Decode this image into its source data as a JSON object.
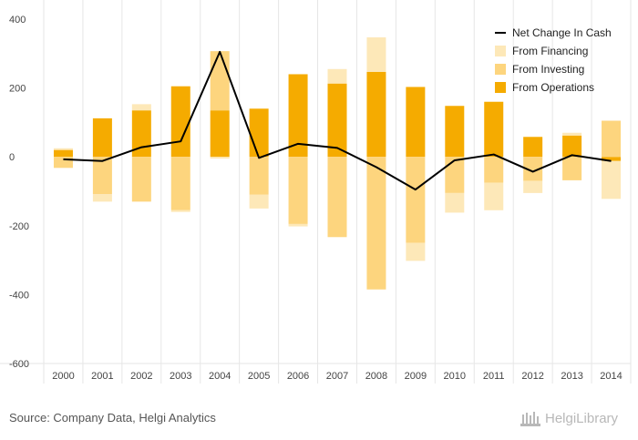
{
  "source_note": "Source: Company Data, Helgi Analytics",
  "brand": {
    "name": "HelgiLibrary"
  },
  "colors": {
    "operations": "#f5ab00",
    "investing": "#fdd57e",
    "financing": "#fde8b8",
    "net_line": "#000000",
    "grid": "#e6e6e6",
    "axis_text": "#444444",
    "brand_gray": "#b8b8b8"
  },
  "chart_data": {
    "type": "bar",
    "stacked": true,
    "categories": [
      "2000",
      "2001",
      "2002",
      "2003",
      "2004",
      "2005",
      "2006",
      "2007",
      "2008",
      "2009",
      "2010",
      "2011",
      "2012",
      "2013",
      "2014"
    ],
    "series": [
      {
        "name": "From Operations",
        "type": "bar",
        "color": "#f5ab00",
        "values": [
          20,
          112,
          135,
          205,
          135,
          140,
          240,
          213,
          247,
          203,
          148,
          160,
          58,
          62,
          -12
        ]
      },
      {
        "name": "From Investing",
        "type": "bar",
        "color": "#fdd57e",
        "values": [
          -32,
          -108,
          -130,
          -155,
          172,
          -110,
          -195,
          -233,
          -385,
          -250,
          -105,
          -75,
          -70,
          -68,
          105
        ]
      },
      {
        "name": "From Financing",
        "type": "bar",
        "color": "#fde8b8",
        "values": [
          5,
          -22,
          18,
          -5,
          -5,
          -40,
          -7,
          42,
          100,
          -52,
          -57,
          -80,
          -35,
          8,
          -110
        ]
      },
      {
        "name": "Net Change In Cash",
        "type": "line",
        "color": "#000000",
        "values": [
          -7,
          -12,
          28,
          45,
          305,
          -3,
          38,
          26,
          -30,
          -95,
          -10,
          7,
          -43,
          5,
          -12
        ]
      }
    ],
    "title": "",
    "xlabel": "",
    "ylabel": "",
    "ylim": [
      -600,
      400
    ],
    "yticks": [
      400,
      200,
      0,
      -200,
      -400,
      -600
    ],
    "grid": "vertical category separators only",
    "legend": "top-right"
  }
}
